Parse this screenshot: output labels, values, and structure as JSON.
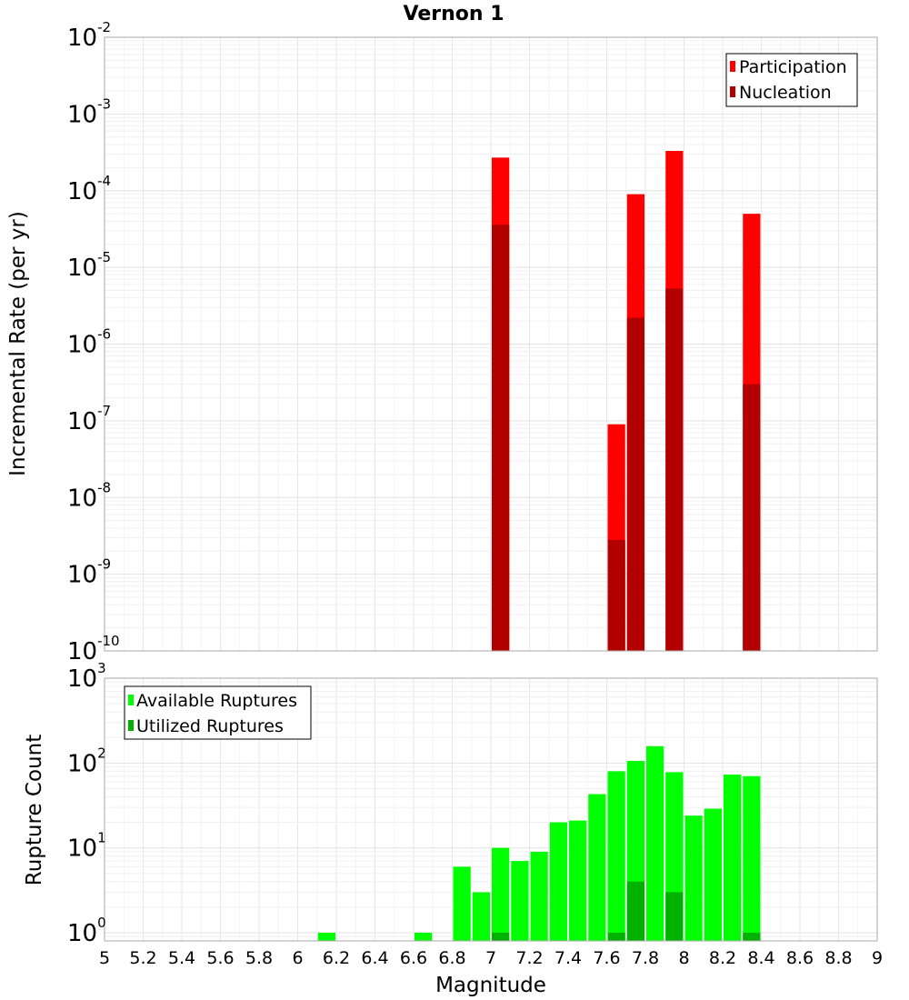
{
  "chart_data": [
    {
      "type": "bar",
      "title": "Vernon 1",
      "xlabel": "Magnitude",
      "ylabel": "Incremental Rate (per yr)",
      "yscale": "log",
      "xlim": [
        5,
        9
      ],
      "ylim": [
        1e-10,
        0.01
      ],
      "y_ticks": [
        {
          "base": "10",
          "exp": "-10",
          "value": 1e-10
        },
        {
          "base": "10",
          "exp": "-9",
          "value": 1e-09
        },
        {
          "base": "10",
          "exp": "-8",
          "value": 1e-08
        },
        {
          "base": "10",
          "exp": "-7",
          "value": 1e-07
        },
        {
          "base": "10",
          "exp": "-6",
          "value": 1e-06
        },
        {
          "base": "10",
          "exp": "-5",
          "value": 1e-05
        },
        {
          "base": "10",
          "exp": "-4",
          "value": 0.0001
        },
        {
          "base": "10",
          "exp": "-3",
          "value": 0.001
        },
        {
          "base": "10",
          "exp": "-2",
          "value": 0.01
        }
      ],
      "legend": {
        "position": "top-right",
        "entries": [
          "Participation",
          "Nucleation"
        ]
      },
      "bin_width": 0.1,
      "series": [
        {
          "name": "Participation",
          "color": "#ff0000",
          "x": [
            7.05,
            7.65,
            7.75,
            7.95,
            8.35
          ],
          "values": [
            0.00027,
            9e-08,
            9e-05,
            0.00033,
            5e-05
          ]
        },
        {
          "name": "Nucleation",
          "color": "#b20000",
          "x": [
            7.05,
            7.65,
            7.75,
            7.95,
            8.35
          ],
          "values": [
            3.6e-05,
            2.8e-09,
            2.2e-06,
            5.3e-06,
            3e-07
          ]
        }
      ]
    },
    {
      "type": "bar",
      "title": "",
      "xlabel": "Magnitude",
      "ylabel": "Rupture Count",
      "yscale": "log",
      "xlim": [
        5,
        9
      ],
      "ylim": [
        0.8,
        1000
      ],
      "x_ticks": [
        "5",
        "5.2",
        "5.4",
        "5.6",
        "5.8",
        "6",
        "6.2",
        "6.4",
        "6.6",
        "6.8",
        "7",
        "7.2",
        "7.4",
        "7.6",
        "7.8",
        "8",
        "8.2",
        "8.4",
        "8.6",
        "8.8",
        "9"
      ],
      "y_ticks": [
        {
          "base": "10",
          "exp": "0",
          "value": 1
        },
        {
          "base": "10",
          "exp": "1",
          "value": 10
        },
        {
          "base": "10",
          "exp": "2",
          "value": 100
        },
        {
          "base": "10",
          "exp": "3",
          "value": 1000
        }
      ],
      "legend": {
        "position": "top-left",
        "entries": [
          "Available Ruptures",
          "Utilized Ruptures"
        ]
      },
      "bin_width": 0.1,
      "series": [
        {
          "name": "Available Ruptures",
          "color": "#00ff00",
          "x": [
            6.15,
            6.65,
            6.85,
            6.95,
            7.05,
            7.15,
            7.25,
            7.35,
            7.45,
            7.55,
            7.65,
            7.75,
            7.85,
            7.95,
            8.05,
            8.15,
            8.25,
            8.35
          ],
          "values": [
            1,
            1,
            6,
            3,
            10,
            7,
            9,
            20,
            21,
            43,
            80,
            106,
            158,
            78,
            24,
            29,
            73,
            70
          ]
        },
        {
          "name": "Utilized Ruptures",
          "color": "#00b200",
          "x": [
            7.05,
            7.65,
            7.75,
            7.95,
            8.35
          ],
          "values": [
            1,
            1,
            4,
            3,
            1
          ]
        }
      ]
    }
  ]
}
